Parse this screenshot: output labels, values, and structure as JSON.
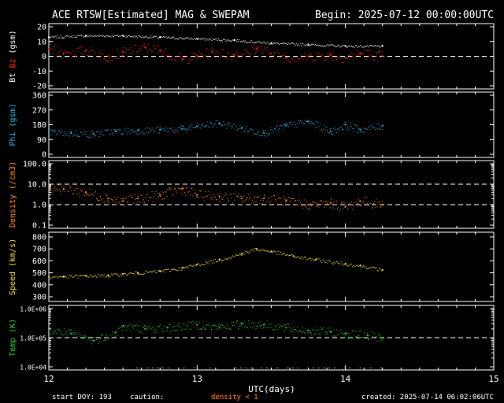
{
  "header": {
    "title": "ACE RTSW[Estimated] MAG & SWEPAM",
    "begin": "Begin: 2025-07-12 00:00:00UTC"
  },
  "footer": {
    "start_doy": "start DOY: 193",
    "caution": "caution:",
    "density_note": "density < 1",
    "created": "created: 2025-07-14 06:02:06UTC"
  },
  "colors": {
    "background": "#000000",
    "axes": "#ffffff",
    "bt": "#ffffff",
    "bz": "#ff2020",
    "phi": "#22b8e6",
    "density": "#ff8c1a",
    "speed": "#f2e02a",
    "temp": "#22d622"
  },
  "chart_data": [
    {
      "type": "scatter",
      "panel": "mag",
      "ylabel_parts": [
        "Bt",
        "Bz",
        "(gsm)"
      ],
      "ylim": [
        -20,
        20
      ],
      "yticks": [
        "20",
        "10",
        "0",
        "-10",
        "-20"
      ],
      "ytick_values": [
        20,
        10,
        0,
        -10,
        -20
      ],
      "dashed_reference": [
        0
      ],
      "series": [
        {
          "name": "Bt",
          "x": [
            12.0,
            12.25,
            12.5,
            12.75,
            13.0,
            13.25,
            13.5,
            13.75,
            14.0,
            14.25
          ],
          "values": [
            13,
            14,
            14,
            13,
            12,
            11,
            9,
            8,
            7,
            7
          ]
        },
        {
          "name": "Bz",
          "x": [
            12.0,
            12.1,
            12.25,
            12.4,
            12.5,
            12.65,
            12.75,
            12.9,
            13.0,
            13.1,
            13.25,
            13.4,
            13.5,
            13.6,
            13.75,
            13.9,
            14.0,
            14.1,
            14.25
          ],
          "values": [
            5,
            2,
            4,
            0,
            3,
            6,
            4,
            -2,
            0,
            3,
            1,
            5,
            2,
            -1,
            0,
            1,
            -1,
            2,
            0
          ]
        }
      ]
    },
    {
      "type": "scatter",
      "panel": "phi",
      "ylabel_parts": [
        "Phi (gsm)"
      ],
      "ylim": [
        0,
        360
      ],
      "yticks": [
        "360",
        "270",
        "180",
        "90",
        "0"
      ],
      "ytick_values": [
        360,
        270,
        180,
        90,
        0
      ],
      "series": [
        {
          "name": "Phi",
          "x": [
            12.0,
            12.15,
            12.3,
            12.45,
            12.6,
            12.75,
            12.9,
            13.0,
            13.15,
            13.3,
            13.45,
            13.6,
            13.75,
            13.9,
            14.0,
            14.1,
            14.25
          ],
          "values": [
            135,
            130,
            125,
            140,
            145,
            150,
            155,
            170,
            190,
            160,
            130,
            175,
            200,
            140,
            180,
            150,
            175
          ]
        }
      ]
    },
    {
      "type": "scatter",
      "panel": "density",
      "ylabel_parts": [
        "Density (/cm3)"
      ],
      "yscale": "log",
      "ylim": [
        0.1,
        100
      ],
      "yticks": [
        "100.0",
        "10.0",
        "1.0",
        "0.1"
      ],
      "ytick_values": [
        100,
        10,
        1,
        0.1
      ],
      "dashed_reference": [
        10,
        1
      ],
      "series": [
        {
          "name": "Density",
          "x": [
            12.0,
            12.1,
            12.25,
            12.4,
            12.5,
            12.6,
            12.75,
            12.9,
            13.0,
            13.15,
            13.3,
            13.45,
            13.6,
            13.75,
            13.9,
            14.0,
            14.1,
            14.25
          ],
          "values": [
            7,
            6,
            4,
            2,
            1.5,
            2,
            3,
            6,
            3,
            2.5,
            2,
            2,
            1.5,
            1,
            1.2,
            0.8,
            1.5,
            1
          ]
        }
      ]
    },
    {
      "type": "scatter",
      "panel": "speed",
      "ylabel_parts": [
        "Speed (km/s)"
      ],
      "ylim": [
        300,
        800
      ],
      "yticks": [
        "800",
        "700",
        "600",
        "500",
        "400",
        "300"
      ],
      "ytick_values": [
        800,
        700,
        600,
        500,
        400,
        300
      ],
      "series": [
        {
          "name": "Speed",
          "x": [
            12.0,
            12.1,
            12.25,
            12.4,
            12.5,
            12.6,
            12.75,
            12.9,
            13.0,
            13.15,
            13.3,
            13.4,
            13.5,
            13.65,
            13.8,
            14.0,
            14.1,
            14.25
          ],
          "values": [
            465,
            470,
            475,
            480,
            490,
            500,
            515,
            540,
            570,
            610,
            660,
            700,
            680,
            640,
            610,
            575,
            560,
            525
          ]
        }
      ]
    },
    {
      "type": "scatter",
      "panel": "temp",
      "ylabel_parts": [
        "Temp (K)"
      ],
      "yscale": "log",
      "ylim": [
        10000,
        1000000
      ],
      "yticks": [
        "1.0E+06",
        "1.0E+05",
        "1.0E+04"
      ],
      "ytick_values": [
        1000000,
        100000,
        10000
      ],
      "dashed_reference": [
        100000
      ],
      "xlabel": "UTC(days)",
      "xticks": [
        "12",
        "13",
        "14",
        "15"
      ],
      "xtick_values": [
        12,
        13,
        14,
        15
      ],
      "series": [
        {
          "name": "Temp",
          "x": [
            12.0,
            12.15,
            12.3,
            12.45,
            12.5,
            12.65,
            12.8,
            13.0,
            13.15,
            13.3,
            13.45,
            13.6,
            13.75,
            13.9,
            14.0,
            14.15,
            14.25
          ],
          "values": [
            180000,
            140000,
            80000,
            150000,
            250000,
            200000,
            220000,
            280000,
            230000,
            300000,
            280000,
            220000,
            180000,
            160000,
            140000,
            120000,
            100000
          ]
        }
      ]
    }
  ]
}
